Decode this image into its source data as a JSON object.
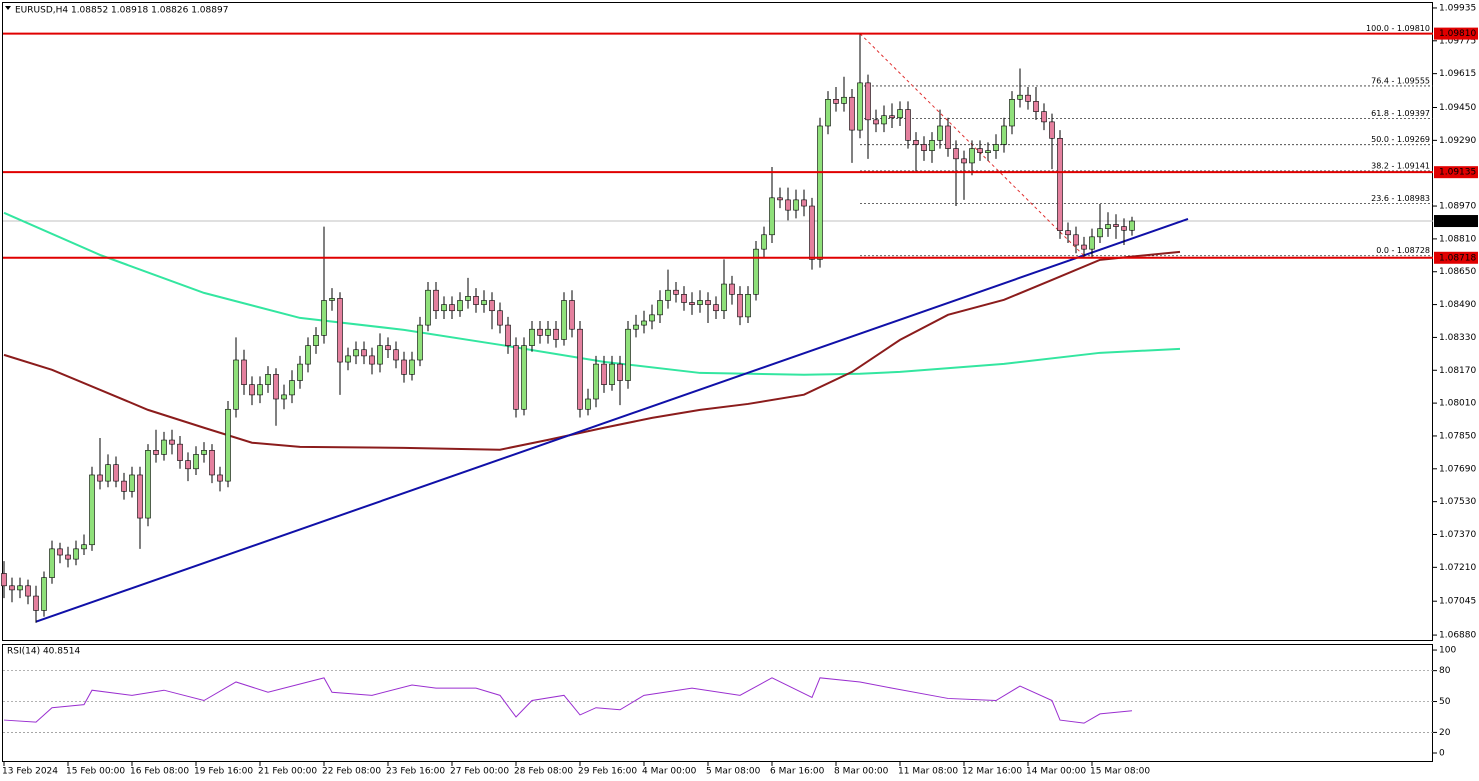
{
  "chart_data": {
    "type": "candlestick",
    "header": "EURUSD,H4  1.08852 1.08918 1.08826 1.08897",
    "categories": [
      "13 Feb 2024",
      null,
      null,
      null,
      null,
      null,
      null,
      null,
      "15 Feb 00:00",
      null,
      null,
      null,
      null,
      null,
      null,
      null,
      "16 Feb 08:00",
      null,
      null,
      null,
      null,
      null,
      null,
      null,
      "19 Feb 16:00",
      null,
      null,
      null,
      null,
      null,
      null,
      null,
      "21 Feb 00:00",
      null,
      null,
      null,
      null,
      null,
      null,
      null,
      "22 Feb 08:00",
      null,
      null,
      null,
      null,
      null,
      null,
      null,
      "23 Feb 16:00",
      null,
      null,
      null,
      null,
      null,
      null,
      null,
      "27 Feb 00:00",
      null,
      null,
      null,
      null,
      null,
      null,
      null,
      "28 Feb 08:00",
      null,
      null,
      null,
      null,
      null,
      null,
      null,
      "29 Feb 16:00",
      null,
      null,
      null,
      null,
      null,
      null,
      null,
      "4 Mar 00:00",
      null,
      null,
      null,
      null,
      null,
      null,
      null,
      "5 Mar 08:00",
      null,
      null,
      null,
      null,
      null,
      null,
      null,
      "6 Mar 16:00",
      null,
      null,
      null,
      null,
      null,
      null,
      null,
      "8 Mar 00:00",
      null,
      null,
      null,
      null,
      null,
      null,
      null,
      "11 Mar 08:00",
      null,
      null,
      null,
      null,
      null,
      null,
      null,
      "12 Mar 16:00",
      null,
      null,
      null,
      null,
      null,
      null,
      null,
      "14 Mar 00:00",
      null,
      null,
      null,
      null,
      null,
      null,
      null,
      "15 Mar 08:00",
      null,
      null,
      null,
      null,
      null
    ],
    "open": [
      1.0718,
      1.0712,
      1.071,
      1.0712,
      1.0707,
      1.07,
      1.0716,
      1.073,
      1.0727,
      1.0725,
      1.073,
      1.0732,
      1.0766,
      1.0763,
      1.0771,
      1.0763,
      1.0758,
      1.0766,
      1.0745,
      1.0778,
      1.0776,
      1.0783,
      1.0781,
      1.0773,
      1.0769,
      1.0776,
      1.0778,
      1.0766,
      1.0763,
      1.0798,
      1.0822,
      1.081,
      1.0805,
      1.081,
      1.0815,
      1.0803,
      1.0805,
      1.0812,
      1.082,
      1.0829,
      1.0834,
      1.0851,
      1.0852,
      1.0821,
      1.0824,
      1.0827,
      1.0824,
      1.082,
      1.0829,
      1.0827,
      1.0822,
      1.0815,
      1.0822,
      1.0839,
      1.0856,
      1.0846,
      1.0849,
      1.0846,
      1.0851,
      1.0853,
      1.0849,
      1.0851,
      1.0846,
      1.0839,
      1.0829,
      1.0798,
      1.0829,
      1.0837,
      1.0834,
      1.0837,
      1.0832,
      1.0851,
      1.0837,
      1.0798,
      1.0803,
      1.082,
      1.081,
      1.082,
      1.0812,
      1.0837,
      1.0839,
      1.0841,
      1.0844,
      1.0851,
      1.0856,
      1.0854,
      1.085,
      1.0849,
      1.0851,
      1.0849,
      1.0846,
      1.0859,
      1.0854,
      1.0843,
      1.0854,
      1.0876,
      1.0883,
      1.0901,
      1.09,
      1.0895,
      1.09,
      1.0897,
      1.0871,
      1.0936,
      1.0949,
      1.0947,
      1.095,
      1.0934,
      1.0957,
      1.0939,
      1.0937,
      1.0941,
      1.094,
      1.0944,
      1.0929,
      1.0927,
      1.0924,
      1.0929,
      1.0936,
      1.0925,
      1.092,
      1.0918,
      1.0925,
      1.0923,
      1.0924,
      1.0927,
      1.0936,
      1.0949,
      1.0951,
      1.0948,
      1.0943,
      1.0938,
      1.093,
      1.0885,
      1.0883,
      1.0878,
      1.0876,
      1.0882,
      1.0886,
      1.0888,
      1.0887,
      1.08852
    ],
    "high": [
      1.0724,
      1.0716,
      1.0716,
      1.0715,
      1.0712,
      1.0719,
      1.0734,
      1.0733,
      1.0731,
      1.0734,
      1.0737,
      1.077,
      1.0784,
      1.0776,
      1.0775,
      1.0767,
      1.077,
      1.077,
      1.0781,
      1.0788,
      1.0787,
      1.0788,
      1.0785,
      1.0777,
      1.078,
      1.0782,
      1.0781,
      1.077,
      1.0802,
      1.0833,
      1.0827,
      1.0814,
      1.0814,
      1.0819,
      1.0818,
      1.081,
      1.0817,
      1.0824,
      1.0833,
      1.0838,
      1.0887,
      1.0857,
      1.0855,
      1.0828,
      1.0831,
      1.0831,
      1.0828,
      1.0835,
      1.0833,
      1.0831,
      1.0826,
      1.0826,
      1.0843,
      1.086,
      1.086,
      1.0853,
      1.0853,
      1.0855,
      1.0862,
      1.0857,
      1.0856,
      1.0855,
      1.085,
      1.0843,
      1.0833,
      1.0833,
      1.0841,
      1.0841,
      1.0841,
      1.0841,
      1.0855,
      1.0856,
      1.0841,
      1.0808,
      1.0824,
      1.0824,
      1.0824,
      1.0824,
      1.0841,
      1.0844,
      1.0846,
      1.0849,
      1.0856,
      1.0866,
      1.086,
      1.0858,
      1.0855,
      1.0856,
      1.0855,
      1.0853,
      1.0871,
      1.0863,
      1.0858,
      1.0858,
      1.088,
      1.0887,
      1.0916,
      1.0906,
      1.0906,
      1.0905,
      1.0905,
      1.0901,
      1.094,
      1.0953,
      1.0955,
      1.096,
      1.0954,
      1.0981,
      1.0961,
      1.0944,
      1.0946,
      1.0947,
      1.0948,
      1.0948,
      1.0933,
      1.0931,
      1.0933,
      1.0944,
      1.094,
      1.0929,
      1.0924,
      1.0929,
      1.0929,
      1.0928,
      1.0932,
      1.094,
      1.0953,
      1.0964,
      1.0955,
      1.0955,
      1.0947,
      1.0942,
      1.0934,
      1.0889,
      1.0887,
      1.0882,
      1.0886,
      1.0898,
      1.0894,
      1.0893,
      1.0891,
      1.08918
    ],
    "low": [
      1.0706,
      1.0704,
      1.0706,
      1.0703,
      1.0694,
      1.0697,
      1.0713,
      1.0723,
      1.0721,
      1.0722,
      1.0727,
      1.0729,
      1.0759,
      1.076,
      1.076,
      1.0754,
      1.0755,
      1.073,
      1.0741,
      1.0772,
      1.0773,
      1.0776,
      1.0769,
      1.0763,
      1.0766,
      1.0772,
      1.0762,
      1.0758,
      1.076,
      1.0794,
      1.0805,
      1.08,
      1.0801,
      1.0806,
      1.079,
      1.0798,
      1.0801,
      1.0808,
      1.0816,
      1.0825,
      1.083,
      1.0846,
      1.0805,
      1.0817,
      1.082,
      1.082,
      1.0815,
      1.0816,
      1.0823,
      1.0818,
      1.0811,
      1.0812,
      1.0819,
      1.0836,
      1.0842,
      1.0842,
      1.0842,
      1.0843,
      1.0847,
      1.0845,
      1.0845,
      1.0837,
      1.0835,
      1.0825,
      1.0794,
      1.0795,
      1.0826,
      1.083,
      1.083,
      1.0828,
      1.0829,
      1.0833,
      1.0794,
      1.0795,
      1.0799,
      1.0806,
      1.0807,
      1.08,
      1.0808,
      1.0833,
      1.0835,
      1.0837,
      1.084,
      1.0847,
      1.085,
      1.0846,
      1.0844,
      1.0845,
      1.084,
      1.0842,
      1.0842,
      1.0849,
      1.0839,
      1.084,
      1.0851,
      1.0872,
      1.0879,
      1.0896,
      1.089,
      1.0891,
      1.0892,
      1.0866,
      1.0867,
      1.0932,
      1.0943,
      1.0943,
      1.0918,
      1.093,
      1.092,
      1.0933,
      1.0933,
      1.0935,
      1.0936,
      1.0925,
      1.0914,
      1.0919,
      1.0918,
      1.0925,
      1.0921,
      1.0897,
      1.09,
      1.0912,
      1.0919,
      1.0919,
      1.092,
      1.0923,
      1.0932,
      1.0945,
      1.0944,
      1.0939,
      1.0934,
      1.0915,
      1.0881,
      1.0879,
      1.0874,
      1.0872,
      1.0872,
      1.0879,
      1.0882,
      1.0881,
      1.0878,
      1.08826
    ],
    "close": [
      1.0712,
      1.071,
      1.0712,
      1.0707,
      1.07,
      1.0716,
      1.073,
      1.0727,
      1.0725,
      1.073,
      1.0732,
      1.0766,
      1.0763,
      1.0771,
      1.0763,
      1.0758,
      1.0766,
      1.0745,
      1.0778,
      1.0776,
      1.0783,
      1.0781,
      1.0773,
      1.0769,
      1.0776,
      1.0778,
      1.0766,
      1.0763,
      1.0798,
      1.0822,
      1.081,
      1.0805,
      1.081,
      1.0815,
      1.0803,
      1.0805,
      1.0812,
      1.082,
      1.0829,
      1.0834,
      1.0851,
      1.0852,
      1.0821,
      1.0824,
      1.0827,
      1.0824,
      1.082,
      1.0829,
      1.0827,
      1.0822,
      1.0815,
      1.0822,
      1.0839,
      1.0856,
      1.0846,
      1.0849,
      1.0846,
      1.0851,
      1.0853,
      1.0849,
      1.0851,
      1.0846,
      1.0839,
      1.0829,
      1.0798,
      1.0829,
      1.0837,
      1.0834,
      1.0837,
      1.0832,
      1.0851,
      1.0837,
      1.0798,
      1.0803,
      1.082,
      1.081,
      1.082,
      1.0812,
      1.0837,
      1.0839,
      1.0841,
      1.0844,
      1.0851,
      1.0856,
      1.0854,
      1.085,
      1.0849,
      1.0851,
      1.0849,
      1.0846,
      1.0859,
      1.0854,
      1.0843,
      1.0854,
      1.0876,
      1.0883,
      1.0901,
      1.09,
      1.0895,
      1.09,
      1.0897,
      1.0871,
      1.0936,
      1.0949,
      1.0947,
      1.095,
      1.0934,
      1.0957,
      1.0939,
      1.0937,
      1.0941,
      1.094,
      1.0944,
      1.0929,
      1.0927,
      1.0924,
      1.0929,
      1.0936,
      1.0925,
      1.092,
      1.0918,
      1.0925,
      1.0923,
      1.0924,
      1.0927,
      1.0936,
      1.0949,
      1.0951,
      1.0948,
      1.0943,
      1.0938,
      1.093,
      1.0885,
      1.0883,
      1.0878,
      1.0876,
      1.0882,
      1.0886,
      1.0888,
      1.0887,
      1.08852,
      1.08897
    ],
    "up_color": "#8fe07a",
    "down_color": "#e4809e",
    "ylim": [
      1.06856,
      1.09964
    ],
    "yticks": [
      1.09935,
      1.09775,
      1.09615,
      {
        "value": 1.0945,
        "label": "1.09450"
      },
      {
        "value": 1.0929,
        "label": "1.09290"
      },
      {
        "value": 1.0897,
        "label": "1.08970"
      },
      {
        "value": 1.0881,
        "label": "1.08810"
      },
      {
        "value": 1.0865,
        "label": "1.08650"
      },
      {
        "value": 1.0849,
        "label": "1.08490"
      },
      {
        "value": 1.0833,
        "label": "1.08330"
      },
      {
        "value": 1.0817,
        "label": "1.08170"
      },
      {
        "value": 1.0801,
        "label": "1.08010"
      },
      {
        "value": 1.0785,
        "label": "1.07850"
      },
      {
        "value": 1.0769,
        "label": "1.07690"
      },
      {
        "value": 1.0753,
        "label": "1.07530"
      },
      {
        "value": 1.0737,
        "label": "1.07370"
      },
      {
        "value": 1.0721,
        "label": "1.07210"
      },
      1.07045,
      {
        "value": 1.0688,
        "label": "1.06880"
      }
    ],
    "overlays": [
      {
        "color": "#33e6a0",
        "x": [
          0,
          12,
          25,
          37,
          50,
          62,
          75,
          87,
          100,
          107,
          112,
          125,
          137,
          147
        ],
        "values": [
          1.08937,
          1.08732,
          1.08547,
          1.08425,
          1.08367,
          1.08294,
          1.08211,
          1.08157,
          1.08148,
          1.08153,
          1.08162,
          1.08201,
          1.08255,
          1.08274
        ]
      },
      {
        "color": "#8b1c1c",
        "x": [
          0,
          6,
          12,
          18,
          25,
          31,
          37,
          50,
          62,
          68,
          75,
          81,
          87,
          93,
          100,
          106,
          112,
          118,
          125,
          131,
          137,
          147
        ],
        "values": [
          1.08245,
          1.08172,
          1.08075,
          1.07977,
          1.0789,
          1.07817,
          1.07797,
          1.07792,
          1.07783,
          1.07831,
          1.0789,
          1.07938,
          1.07977,
          1.08006,
          1.08051,
          1.08162,
          1.08318,
          1.0844,
          1.08513,
          1.0861,
          1.08708,
          1.08747
        ]
      }
    ],
    "trendline": {
      "color": "#1010a8",
      "x": [
        4,
        148
      ],
      "values": [
        1.06945,
        1.08907
      ]
    },
    "fib_diagonal": {
      "color": "#e03030",
      "x": [
        107,
        135
      ],
      "values": [
        1.0981,
        1.08728
      ]
    },
    "levels": [
      {
        "value": 1.0981,
        "label": "1.09810"
      },
      {
        "value": 1.09135,
        "label": "1.09135"
      },
      {
        "value": 1.08718,
        "label": "1.08718"
      }
    ],
    "level_color": "#e00000",
    "current_price": {
      "value": 1.08897,
      "label": "1.08897"
    },
    "fib": [
      {
        "value": 1.0981,
        "label": "100.0 - 1.09810"
      },
      {
        "value": 1.09555,
        "label": "76.4 - 1.09555"
      },
      {
        "value": 1.09397,
        "label": "61.8 - 1.09397"
      },
      {
        "value": 1.09269,
        "label": "50.0 - 1.09269"
      },
      {
        "value": 1.09141,
        "label": "38.2 - 1.09141"
      },
      {
        "value": 1.08983,
        "label": "23.6 - 1.08983"
      },
      {
        "value": 1.08728,
        "label": "0.0 - 1.08728"
      }
    ],
    "fib_color": "#2020b0",
    "rsi": {
      "title": "RSI(14) 40.8514",
      "color": "#9a2fd0",
      "x": [
        0,
        4,
        6,
        10,
        11,
        16,
        20,
        25,
        29,
        33,
        40,
        41,
        46,
        51,
        54,
        59,
        62,
        64,
        66,
        70,
        72,
        74,
        77,
        80,
        86,
        92,
        96,
        101,
        102,
        107,
        111,
        118,
        124,
        127,
        131,
        132,
        135,
        137,
        141
      ],
      "values": [
        32,
        30,
        44,
        47,
        61,
        56,
        61,
        51,
        69,
        59,
        73,
        59,
        56,
        66,
        63,
        63,
        56,
        35,
        51,
        56,
        37,
        44,
        42,
        56,
        63,
        56,
        73,
        54,
        73,
        69,
        63,
        53,
        51,
        65,
        51,
        32,
        29,
        38,
        41
      ],
      "ylim": [
        -16.5,
        104.9
      ],
      "yticks": [
        100,
        80,
        50,
        20,
        0
      ],
      "levels": [
        80,
        50,
        20
      ]
    }
  }
}
